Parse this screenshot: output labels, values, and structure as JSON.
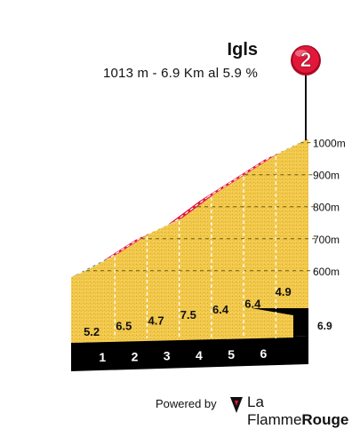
{
  "header": {
    "title": "Igls",
    "subtitle": "1013 m - 6.9 Km al 5.9 %",
    "marker_label": "2"
  },
  "footer": {
    "powered_label": "Powered by",
    "brand_light": "La Flamme",
    "brand_bold": "Rouge"
  },
  "colors": {
    "ground": "#f2c94c",
    "road_red": "#e2173a",
    "road_blue": "#2e5f8f",
    "base": "#000000",
    "marker": "#e2173a"
  },
  "chart_data": {
    "type": "area",
    "title": "Igls",
    "xlabel": "",
    "ylabel": "",
    "x_unit": "km",
    "y_unit": "m",
    "ylim": [
      480,
      1013
    ],
    "xlim": [
      0,
      6.9
    ],
    "y_ticks": [
      600,
      700,
      800,
      900,
      1000
    ],
    "y_tick_labels": [
      "600m",
      "700m",
      "800m",
      "900m",
      "1000m"
    ],
    "x_ticks": [
      1,
      2,
      3,
      4,
      5,
      6
    ],
    "x_tick_labels": [
      "1",
      "2",
      "3",
      "4",
      "5",
      "6"
    ],
    "end_label": "6.9",
    "segments": [
      {
        "from_km": 0,
        "to_km": 1,
        "gradient": 5.2,
        "label": "5.2",
        "color": "blue"
      },
      {
        "from_km": 1,
        "to_km": 2,
        "gradient": 6.5,
        "label": "6.5",
        "color": "red"
      },
      {
        "from_km": 2,
        "to_km": 3,
        "gradient": 4.7,
        "label": "4.7",
        "color": "blue"
      },
      {
        "from_km": 3,
        "to_km": 4,
        "gradient": 7.5,
        "label": "7.5",
        "color": "red"
      },
      {
        "from_km": 4,
        "to_km": 5,
        "gradient": 6.4,
        "label": "6.4",
        "color": "red"
      },
      {
        "from_km": 5,
        "to_km": 6,
        "gradient": 6.4,
        "label": "6.4",
        "color": "red"
      },
      {
        "from_km": 6,
        "to_km": 6.9,
        "gradient": 4.9,
        "label": "4.9",
        "color": "blue"
      }
    ],
    "summit_altitude": 1013,
    "grid": true,
    "grid_style": "dashed"
  }
}
